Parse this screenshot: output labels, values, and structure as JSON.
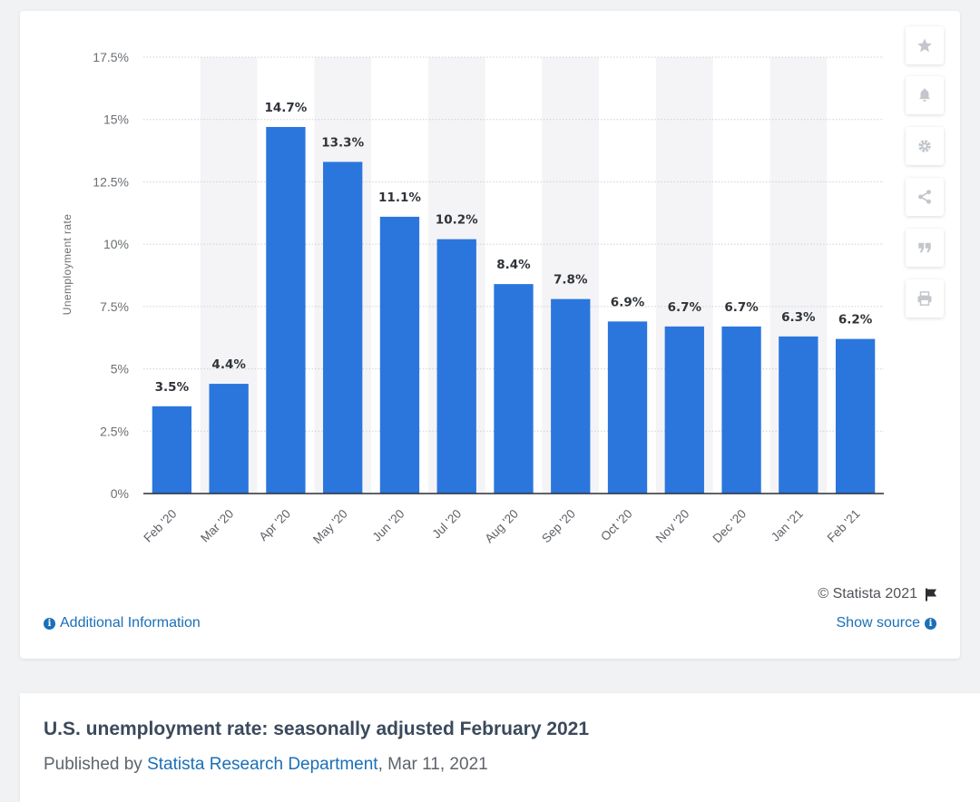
{
  "chart_data": {
    "type": "bar",
    "categories": [
      "Feb '20",
      "Mar '20",
      "Apr '20",
      "May '20",
      "Jun '20",
      "Jul '20",
      "Aug '20",
      "Sep '20",
      "Oct '20",
      "Nov '20",
      "Dec '20",
      "Jan '21",
      "Feb '21"
    ],
    "values": [
      3.5,
      4.4,
      14.7,
      13.3,
      11.1,
      10.2,
      8.4,
      7.8,
      6.9,
      6.7,
      6.7,
      6.3,
      6.2
    ],
    "data_labels": [
      "3.5%",
      "4.4%",
      "14.7%",
      "13.3%",
      "11.1%",
      "10.2%",
      "8.4%",
      "7.8%",
      "6.9%",
      "6.7%",
      "6.7%",
      "6.3%",
      "6.2%"
    ],
    "yticks": [
      0,
      2.5,
      5,
      7.5,
      10,
      12.5,
      15,
      17.5
    ],
    "ytick_labels": [
      "0%",
      "2.5%",
      "5%",
      "7.5%",
      "10%",
      "12.5%",
      "15%",
      "17.5%"
    ],
    "ylim": [
      0,
      17.5
    ],
    "xlabel": "",
    "ylabel": "Unemployment rate",
    "bar_color": "#2a76dd",
    "grid": true
  },
  "toolbar": {
    "buttons": [
      "star-icon",
      "bell-icon",
      "gear-icon",
      "share-icon",
      "quote-icon",
      "print-icon"
    ]
  },
  "footer": {
    "copyright": "© Statista 2021",
    "additional_info": "Additional Information",
    "show_source": "Show source",
    "info_glyph": "i"
  },
  "page": {
    "title": "U.S. unemployment rate: seasonally adjusted February 2021",
    "published_by": "Published by ",
    "author": "Statista Research Department",
    "date_text": ", Mar 11, 2021"
  },
  "colors": {
    "accent": "#1b6fb8",
    "bar": "#2a76dd",
    "stripe": "#f4f4f6"
  }
}
